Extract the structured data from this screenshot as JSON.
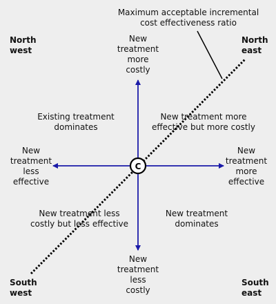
{
  "annotation": "Maximum acceptable incremental\ncost effectiveness ratio",
  "corners": {
    "nw": "North\nwest",
    "ne": "North\neast",
    "sw": "South\nwest",
    "se": "South\neast"
  },
  "axis_labels": {
    "top": "New\ntreatment\nmore\ncostly",
    "bottom": "New\ntreatment\nless\ncostly",
    "left": "New\ntreatment\nless\neffective",
    "right": "New\ntreatment\nmore\neffective"
  },
  "quadrants": {
    "nw": "Existing treatment\ndominates",
    "ne": "New treatment more\neffective but more costly",
    "sw": "New treatment less\ncostly but less effective",
    "se": "New treatment\ndominates"
  },
  "origin_label": "C",
  "colors": {
    "axis": "#1a1aa8",
    "threshold": "#000000",
    "background": "#eeeeee"
  }
}
